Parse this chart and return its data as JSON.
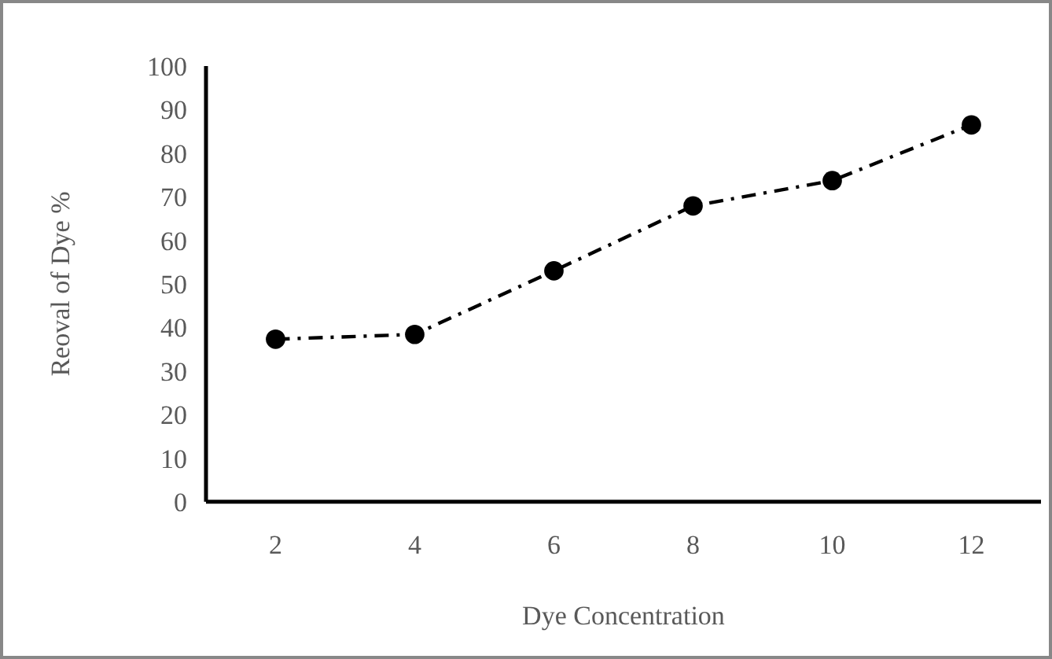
{
  "chart_data": {
    "type": "line",
    "xlabel": "Dye Concentration",
    "ylabel": "Reoval of Dye %",
    "categories": [
      "2",
      "4",
      "6",
      "8",
      "10",
      "12"
    ],
    "series": [
      {
        "color": "#000000",
        "values": [
          37.3,
          38.4,
          53,
          67.9,
          73.7,
          86.5
        ]
      }
    ],
    "ylim": [
      0,
      100
    ],
    "yticks": [
      0,
      10,
      20,
      30,
      40,
      50,
      60,
      70,
      80,
      90,
      100
    ],
    "grid": false,
    "marker": "circle",
    "line_style": "dashed"
  }
}
